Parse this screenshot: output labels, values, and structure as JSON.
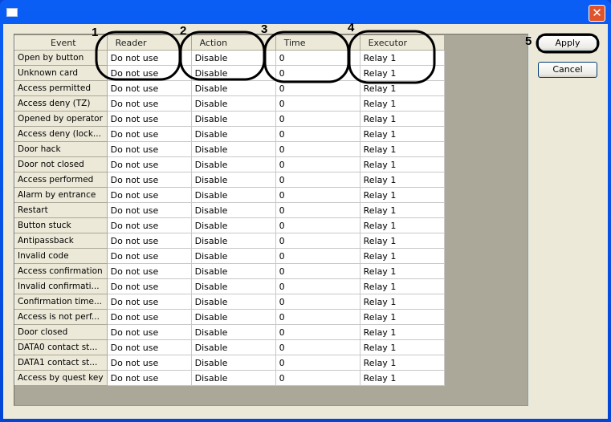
{
  "window": {
    "title": "",
    "close_icon": "close-icon"
  },
  "table": {
    "headers": [
      "Event",
      "Reader",
      "Action",
      "Time",
      "Executor"
    ],
    "rows": [
      [
        "Open by button",
        "Do not use",
        "Disable",
        "0",
        "Relay 1"
      ],
      [
        "Unknown card",
        "Do not use",
        "Disable",
        "0",
        "Relay 1"
      ],
      [
        "Access permitted",
        "Do not use",
        "Disable",
        "0",
        "Relay 1"
      ],
      [
        "Access deny (TZ)",
        "Do not use",
        "Disable",
        "0",
        "Relay 1"
      ],
      [
        "Opened by operator",
        "Do not use",
        "Disable",
        "0",
        "Relay 1"
      ],
      [
        "Access deny (lock...",
        "Do not use",
        "Disable",
        "0",
        "Relay 1"
      ],
      [
        "Door hack",
        "Do not use",
        "Disable",
        "0",
        "Relay 1"
      ],
      [
        "Door not closed",
        "Do not use",
        "Disable",
        "0",
        "Relay 1"
      ],
      [
        "Access performed",
        "Do not use",
        "Disable",
        "0",
        "Relay 1"
      ],
      [
        "Alarm by entrance",
        "Do not use",
        "Disable",
        "0",
        "Relay 1"
      ],
      [
        "Restart",
        "Do not use",
        "Disable",
        "0",
        "Relay 1"
      ],
      [
        "Button stuck",
        "Do not use",
        "Disable",
        "0",
        "Relay 1"
      ],
      [
        "Antipassback",
        "Do not use",
        "Disable",
        "0",
        "Relay 1"
      ],
      [
        "Invalid code",
        "Do not use",
        "Disable",
        "0",
        "Relay 1"
      ],
      [
        "Access confirmation",
        "Do not use",
        "Disable",
        "0",
        "Relay 1"
      ],
      [
        "Invalid confirmati...",
        "Do not use",
        "Disable",
        "0",
        "Relay 1"
      ],
      [
        "Confirmation time...",
        "Do not use",
        "Disable",
        "0",
        "Relay 1"
      ],
      [
        "Access is not perf...",
        "Do not use",
        "Disable",
        "0",
        "Relay 1"
      ],
      [
        "Door closed",
        "Do not use",
        "Disable",
        "0",
        "Relay 1"
      ],
      [
        "DATA0 contact st...",
        "Do not use",
        "Disable",
        "0",
        "Relay 1"
      ],
      [
        "DATA1 contact st...",
        "Do not use",
        "Disable",
        "0",
        "Relay 1"
      ],
      [
        "Access by quest key",
        "Do not use",
        "Disable",
        "0",
        "Relay 1"
      ]
    ]
  },
  "buttons": {
    "apply": "Apply",
    "cancel": "Cancel"
  },
  "annotations": [
    "1",
    "2",
    "3",
    "4",
    "5"
  ]
}
